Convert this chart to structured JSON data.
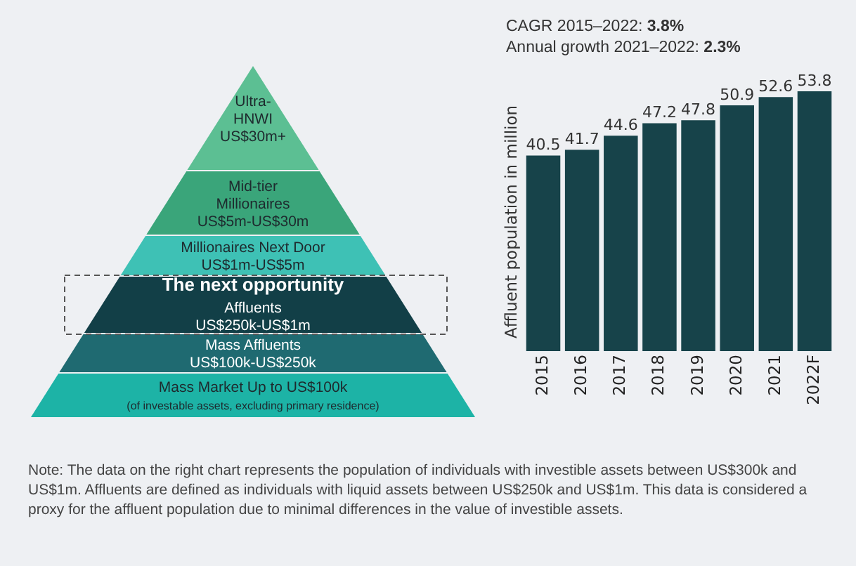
{
  "chart_data": [
    {
      "type": "other",
      "categories": [
        "Ultra-\nHNWI\nUS$30m+",
        "Mid-tier\nMillionaires\nUS$5m-US$30m",
        "Millionaires Next Door\nUS$1m-US$5m",
        "The next opportunity\nAffluents\nUS$250k-US$1m",
        "Mass Affluents\nUS$100k-US$250k",
        "Mass Market Up to US$100k\n(of investable assets, excluding primary residence)"
      ],
      "colors": [
        "#5cbf93",
        "#3aa57a",
        "#3ec1b5",
        "#123f47",
        "#1f6a71",
        "#1db3a6"
      ]
    },
    {
      "type": "bar",
      "ylabel": "Affluent population in million",
      "categories": [
        "2015",
        "2016",
        "2017",
        "2018",
        "2019",
        "2020",
        "2021",
        "2022F"
      ],
      "values": [
        40.5,
        41.7,
        44.6,
        47.2,
        47.8,
        50.9,
        52.6,
        53.8
      ],
      "color": "#17434a",
      "data_labels": true,
      "tick_labels": "x",
      "annotations": [
        "CAGR 2015–2022: 3.8%",
        "Annual growth 2021–2022: 2.3%",
        "Note: The data on the right chart represents the population of individuals with investible assets between US$300k and US$1m. Affluents are defined as individuals with liquid assets between US$250k and US$1m. This data is considered a proxy for the affluent population due to minimal differences in the value of investible assets."
      ]
    }
  ]
}
